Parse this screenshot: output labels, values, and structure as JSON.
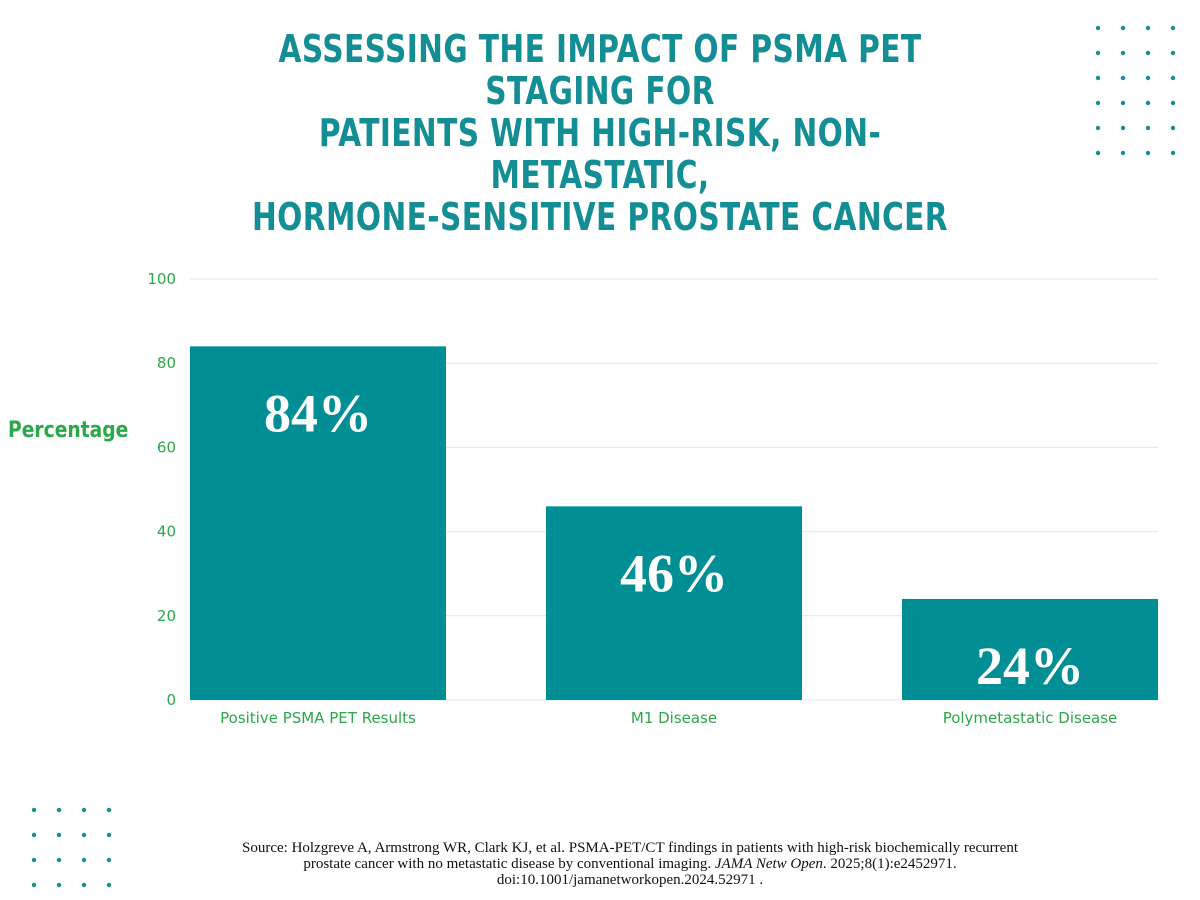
{
  "chart_data": {
    "type": "bar",
    "title_lines": [
      "ASSESSING THE IMPACT OF PSMA PET STAGING FOR",
      "PATIENTS WITH HIGH-RISK, NON-METASTATIC,",
      "HORMONE-SENSITIVE PROSTATE CANCER"
    ],
    "categories": [
      "Positive PSMA PET Results",
      "M1 Disease",
      "Polymetastatic Disease"
    ],
    "values": [
      84,
      46,
      24
    ],
    "data_labels": [
      "84%",
      "46%",
      "24%"
    ],
    "xlabel": "",
    "ylabel": "Percentage",
    "ylim": [
      0,
      100
    ],
    "yticks": [
      0,
      20,
      40,
      60,
      80,
      100
    ],
    "grid": true,
    "bar_color": "#018f95",
    "label_color": "#2ba84a"
  },
  "source": {
    "line1": "Source: Holzgreve A, Armstrong WR, Clark KJ, et al. PSMA-PET/CT findings in patients with high-risk biochemically recurrent",
    "line2_prefix": "prostate cancer with no metastatic disease by conventional imaging.",
    "journal": "JAMA Netw Open",
    "line2_suffix": ". 2025;8(1):e2452971.",
    "line3": "doi:10.1001/jamanetworkopen.2024.52971 ."
  }
}
